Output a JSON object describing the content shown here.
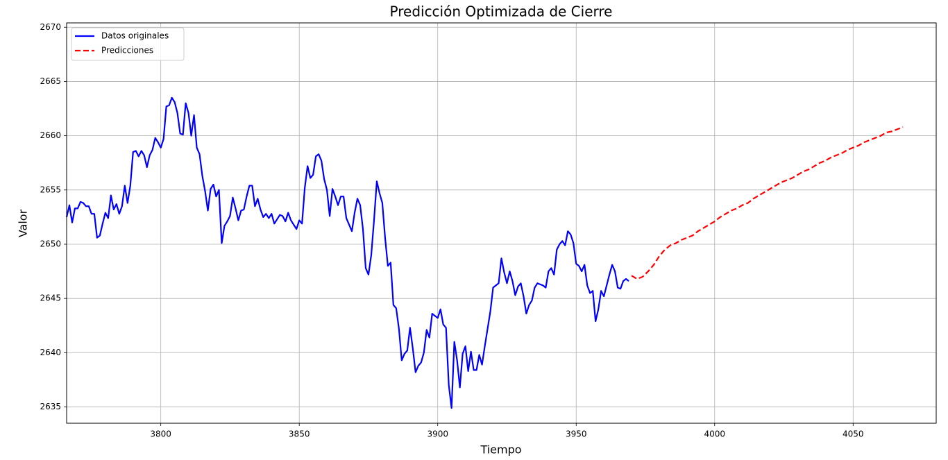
{
  "chart_data": {
    "type": "line",
    "title": "Predicción Optimizada de Cierre",
    "x_label": "Tiempo",
    "y_label": "Valor",
    "xlim": [
      3766,
      4080
    ],
    "ylim": [
      2633.5,
      2670.4
    ],
    "xticks": [
      3800,
      3850,
      3900,
      3950,
      4000,
      4050
    ],
    "yticks": [
      2635,
      2640,
      2645,
      2650,
      2655,
      2660,
      2665,
      2670
    ],
    "grid": true,
    "legend": "upper left",
    "series": [
      {
        "name": "Datos originales",
        "color": "#0000ff",
        "linestyle": "solid",
        "x": [
          3766,
          3767,
          3768,
          3769,
          3770,
          3771,
          3772,
          3773,
          3774,
          3775,
          3776,
          3777,
          3778,
          3779,
          3780,
          3781,
          3782,
          3783,
          3784,
          3785,
          3786,
          3787,
          3788,
          3789,
          3790,
          3791,
          3792,
          3793,
          3794,
          3795,
          3796,
          3797,
          3798,
          3799,
          3800,
          3801,
          3802,
          3803,
          3804,
          3805,
          3806,
          3807,
          3808,
          3809,
          3810,
          3811,
          3812,
          3813,
          3814,
          3815,
          3816,
          3817,
          3818,
          3819,
          3820,
          3821,
          3822,
          3823,
          3824,
          3825,
          3826,
          3827,
          3828,
          3829,
          3830,
          3831,
          3832,
          3833,
          3834,
          3835,
          3836,
          3837,
          3838,
          3839,
          3840,
          3841,
          3842,
          3843,
          3844,
          3845,
          3846,
          3847,
          3848,
          3849,
          3850,
          3851,
          3852,
          3853,
          3854,
          3855,
          3856,
          3857,
          3858,
          3859,
          3860,
          3861,
          3862,
          3863,
          3864,
          3865,
          3866,
          3867,
          3868,
          3869,
          3870,
          3871,
          3872,
          3873,
          3874,
          3875,
          3876,
          3877,
          3878,
          3879,
          3880,
          3881,
          3882,
          3883,
          3884,
          3885,
          3886,
          3887,
          3888,
          3889,
          3890,
          3891,
          3892,
          3893,
          3894,
          3895,
          3896,
          3897,
          3898,
          3899,
          3900,
          3901,
          3902,
          3903,
          3904,
          3905,
          3906,
          3907,
          3908,
          3909,
          3910,
          3911,
          3912,
          3913,
          3914,
          3915,
          3916,
          3917,
          3918,
          3919,
          3920,
          3921,
          3922,
          3923,
          3924,
          3925,
          3926,
          3927,
          3928,
          3929,
          3930,
          3931,
          3932,
          3933,
          3934,
          3935,
          3936,
          3937,
          3938,
          3939,
          3940,
          3941,
          3942,
          3943,
          3944,
          3945,
          3946,
          3947,
          3948,
          3949,
          3950,
          3951,
          3952,
          3953,
          3954,
          3955,
          3956,
          3957,
          3958,
          3959,
          3960,
          3961,
          3962,
          3963,
          3964,
          3965,
          3966,
          3967,
          3968,
          3969
        ],
        "values": [
          2652.5,
          2653.6,
          2652.0,
          2653.3,
          2653.3,
          2653.9,
          2653.8,
          2653.5,
          2653.5,
          2652.8,
          2652.8,
          2650.6,
          2650.8,
          2651.9,
          2652.9,
          2652.4,
          2654.5,
          2653.2,
          2653.7,
          2652.8,
          2653.5,
          2655.4,
          2653.8,
          2655.4,
          2658.5,
          2658.6,
          2658.1,
          2658.6,
          2658.2,
          2657.1,
          2658.2,
          2658.7,
          2659.8,
          2659.4,
          2658.9,
          2659.7,
          2662.7,
          2662.8,
          2663.5,
          2663.1,
          2662.1,
          2660.2,
          2660.1,
          2663.0,
          2662.1,
          2660.0,
          2661.9,
          2658.9,
          2658.3,
          2656.3,
          2654.9,
          2653.1,
          2655.1,
          2655.5,
          2654.4,
          2655.0,
          2650.1,
          2651.7,
          2652.1,
          2652.6,
          2654.3,
          2653.3,
          2652.2,
          2653.1,
          2653.2,
          2654.4,
          2655.4,
          2655.4,
          2653.5,
          2654.2,
          2653.2,
          2652.5,
          2652.8,
          2652.4,
          2652.8,
          2651.9,
          2652.3,
          2652.7,
          2652.6,
          2652.1,
          2652.9,
          2652.2,
          2651.8,
          2651.4,
          2652.2,
          2651.9,
          2655.2,
          2657.2,
          2656.1,
          2656.4,
          2658.1,
          2658.3,
          2657.7,
          2656.0,
          2655.0,
          2652.6,
          2655.1,
          2654.4,
          2653.6,
          2654.4,
          2654.4,
          2652.4,
          2651.8,
          2651.2,
          2652.9,
          2654.2,
          2653.6,
          2651.4,
          2647.8,
          2647.2,
          2649.0,
          2652.2,
          2655.8,
          2654.7,
          2653.8,
          2650.6,
          2648.0,
          2648.3,
          2644.4,
          2644.1,
          2642.2,
          2639.3,
          2639.9,
          2640.2,
          2642.3,
          2640.4,
          2638.2,
          2638.8,
          2639.1,
          2640.0,
          2642.1,
          2641.4,
          2643.6,
          2643.4,
          2643.2,
          2644.0,
          2642.6,
          2642.3,
          2637.0,
          2634.9,
          2641.0,
          2639.3,
          2636.8,
          2639.9,
          2640.6,
          2638.3,
          2640.1,
          2638.4,
          2638.4,
          2639.8,
          2638.9,
          2640.6,
          2642.2,
          2643.8,
          2646.0,
          2646.2,
          2646.4,
          2648.7,
          2647.4,
          2646.4,
          2647.5,
          2646.6,
          2645.3,
          2646.1,
          2646.4,
          2645.2,
          2643.6,
          2644.4,
          2644.8,
          2646.0,
          2646.4,
          2646.3,
          2646.2,
          2646.0,
          2647.5,
          2647.8,
          2647.2,
          2649.5,
          2650.0,
          2650.3,
          2649.9,
          2651.2,
          2650.9,
          2650.1,
          2648.2,
          2648.0,
          2647.5,
          2648.1,
          2646.2,
          2645.5,
          2645.7,
          2642.9,
          2644.0,
          2645.7,
          2645.2,
          2646.2,
          2647.2,
          2648.1,
          2647.5,
          2646.0,
          2645.9,
          2646.6,
          2646.8,
          2646.6
        ]
      },
      {
        "name": "Predicciones",
        "color": "#ff0000",
        "linestyle": "dashed",
        "x": [
          3970,
          3972,
          3974,
          3976,
          3978,
          3980,
          3982,
          3984,
          3986,
          3988,
          3990,
          3992,
          3994,
          3996,
          3998,
          4000,
          4002,
          4004,
          4006,
          4008,
          4010,
          4012,
          4014,
          4016,
          4018,
          4020,
          4022,
          4024,
          4026,
          4028,
          4030,
          4032,
          4034,
          4036,
          4038,
          4040,
          4042,
          4044,
          4046,
          4048,
          4050,
          4052,
          4054,
          4056,
          4058,
          4060,
          4062,
          4064,
          4066,
          4068
        ],
        "values": [
          2647.1,
          2646.8,
          2647.0,
          2647.5,
          2648.1,
          2648.9,
          2649.5,
          2649.9,
          2650.1,
          2650.4,
          2650.6,
          2650.8,
          2651.2,
          2651.5,
          2651.8,
          2652.1,
          2652.5,
          2652.8,
          2653.1,
          2653.3,
          2653.6,
          2653.8,
          2654.2,
          2654.5,
          2654.8,
          2655.1,
          2655.4,
          2655.7,
          2655.9,
          2656.1,
          2656.4,
          2656.7,
          2656.9,
          2657.2,
          2657.5,
          2657.7,
          2658.0,
          2658.2,
          2658.4,
          2658.7,
          2658.9,
          2659.1,
          2659.4,
          2659.6,
          2659.8,
          2660.0,
          2660.3,
          2660.4,
          2660.6,
          2660.8
        ]
      }
    ]
  }
}
